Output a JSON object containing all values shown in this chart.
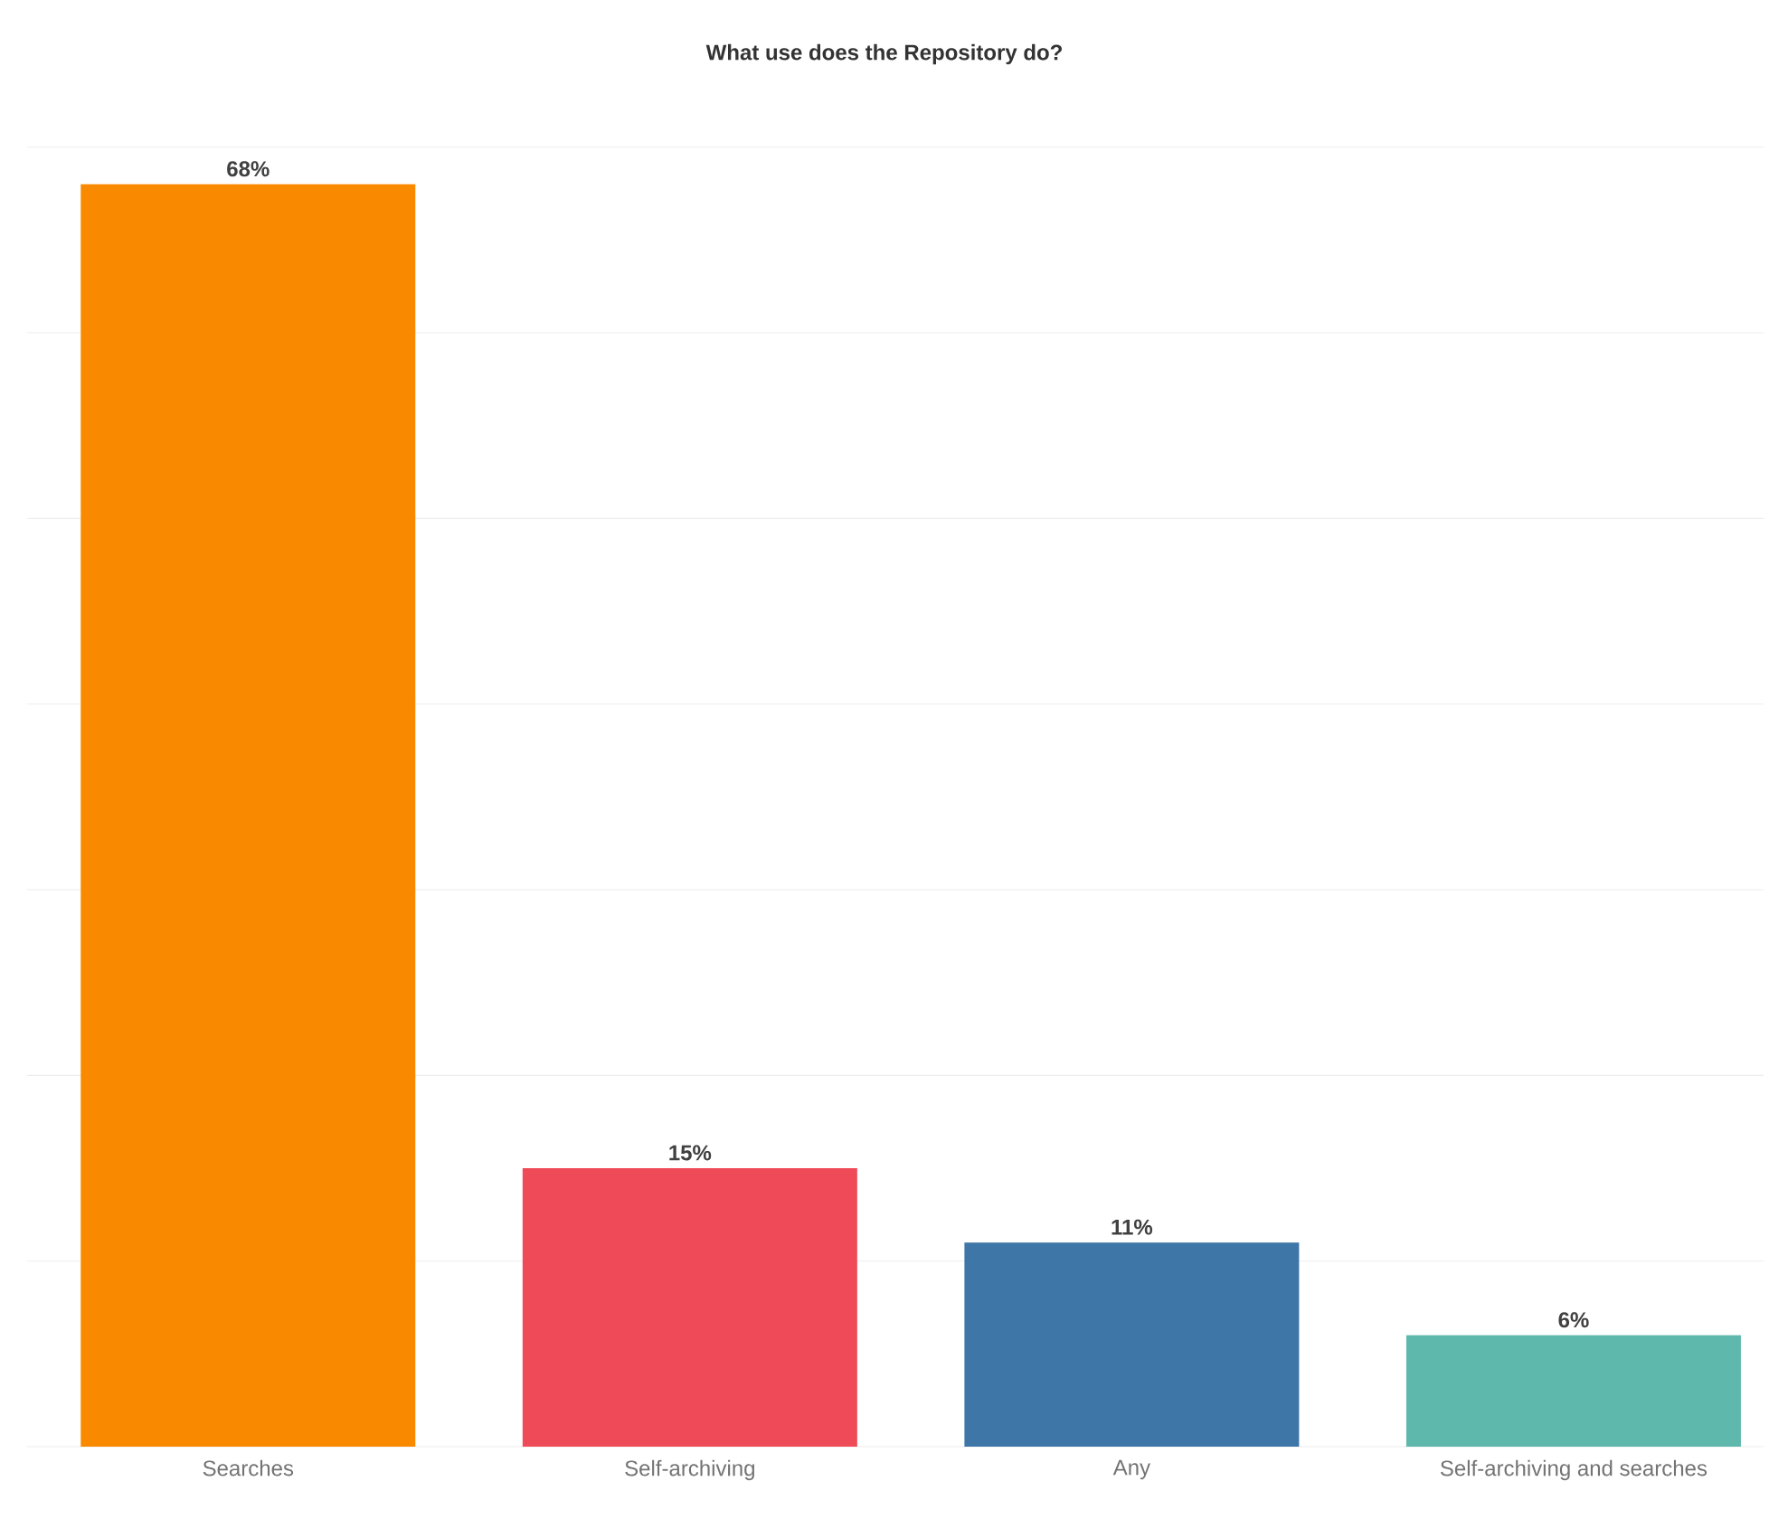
{
  "chart_data": {
    "type": "bar",
    "title": "What use does the Repository do?",
    "categories": [
      "Searches",
      "Self-archiving",
      "Any",
      "Self-archiving and searches"
    ],
    "values": [
      68,
      15,
      11,
      6
    ],
    "colors": [
      "#f98a00",
      "#ef4a57",
      "#3f76a8",
      "#5fb8ac"
    ],
    "value_labels": [
      "68%",
      "15%",
      "11%",
      "6%"
    ],
    "grid": "y",
    "tick_labels": "x"
  }
}
